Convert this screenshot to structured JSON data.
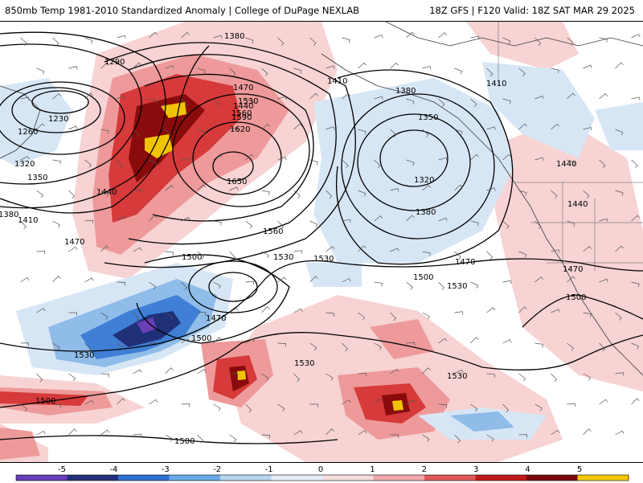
{
  "header": {
    "left_title": "850mb Temp 1981-2010 Standardized Anomaly | College of DuPage NEXLAB",
    "right_title": "18Z GFS | F120 Valid: 18Z SAT MAR 29 2025"
  },
  "contour_labels": [
    "1230",
    "1260",
    "1290",
    "1320",
    "1350",
    "1380",
    "1410",
    "1440",
    "1470",
    "1500",
    "1530",
    "1560",
    "1590",
    "1620",
    "1650"
  ],
  "legend": {
    "ticks": [
      "-5",
      "-4",
      "-3",
      "-2",
      "-1",
      "0",
      "1",
      "2",
      "3",
      "4",
      "5"
    ],
    "colors": [
      "#6a3db8",
      "#23307a",
      "#2f6fcf",
      "#6aa9e6",
      "#b8d6f0",
      "#e6eef8",
      "#f6dcdc",
      "#f2a9a9",
      "#e05a5a",
      "#c01a1a",
      "#7a0a0a",
      "#f5c800"
    ]
  },
  "colors": {
    "warm_light": "#f7d3d3",
    "warm_mid": "#ee9a9a",
    "warm_strong": "#d63a3a",
    "warm_deep": "#8a0b0b",
    "warm_extreme": "#f0c400",
    "cool_light": "#d7e6f5",
    "cool_mid": "#8fbce9",
    "cool_strong": "#3f7fd6",
    "cool_deep": "#1f2f78",
    "cool_extreme": "#6b3fb8"
  }
}
